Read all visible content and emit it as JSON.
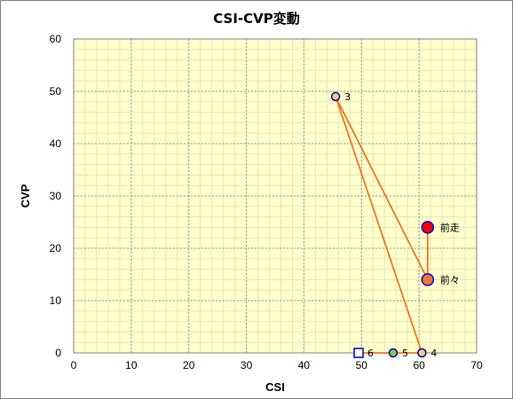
{
  "chart_data": {
    "type": "scatter",
    "title": "CSI-CVP変動",
    "xlabel": "CSI",
    "ylabel": "CVP",
    "xlim": [
      0,
      70
    ],
    "ylim": [
      0,
      60
    ],
    "xticks": [
      0,
      10,
      20,
      30,
      40,
      50,
      60,
      70
    ],
    "yticks": [
      0,
      10,
      20,
      30,
      40,
      50,
      60
    ],
    "grid": true,
    "plot_background": "#ffffcc",
    "line_color": "#f07820",
    "points": [
      {
        "label": "前走",
        "x": 61.5,
        "y": 24,
        "marker": "circle-large",
        "fill": "#ff0000",
        "stroke": "#0000cc"
      },
      {
        "label": "前々",
        "x": 61.5,
        "y": 14,
        "marker": "circle-large",
        "fill": "#f07830",
        "stroke": "#0000cc"
      },
      {
        "label": "3",
        "x": 45.5,
        "y": 49,
        "marker": "circle",
        "fill": "#ffcc66",
        "stroke": "#0000cc"
      },
      {
        "label": "4",
        "x": 60.5,
        "y": 0,
        "marker": "circle",
        "fill": "#ffcc66",
        "stroke": "#0000cc"
      },
      {
        "label": "5",
        "x": 55.5,
        "y": 0,
        "marker": "circle",
        "fill": "#88cc33",
        "stroke": "#0000cc"
      },
      {
        "label": "6",
        "x": 49.5,
        "y": 0,
        "marker": "square",
        "fill": "#ffffff",
        "stroke": "#0000cc"
      }
    ]
  }
}
